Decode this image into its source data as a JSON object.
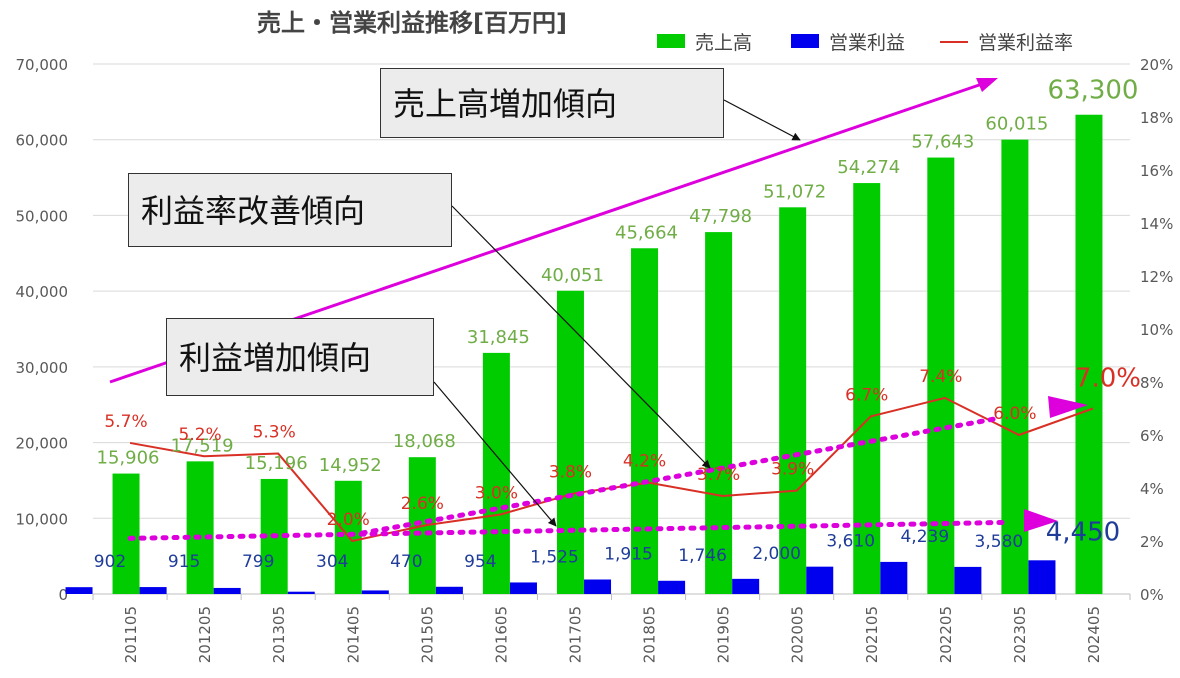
{
  "chart_data": {
    "type": "bar",
    "title": "売上・営業利益推移[百万円]",
    "categories": [
      "201105",
      "201205",
      "201305",
      "201405",
      "201505",
      "201605",
      "201705",
      "201805",
      "201905",
      "202005",
      "202105",
      "202205",
      "202305",
      "202405"
    ],
    "series": [
      {
        "name": "売上高",
        "axis": "left",
        "type": "bar",
        "color": "#00cc00",
        "values": [
          15906,
          17519,
          15196,
          14952,
          18068,
          31845,
          40051,
          45664,
          47798,
          51072,
          54274,
          57643,
          60015,
          63300
        ],
        "labels": [
          "15,906",
          "17,519",
          "15,196",
          "14,952",
          "18,068",
          "31,845",
          "40,051",
          "45,664",
          "47,798",
          "51,072",
          "54,274",
          "57,643",
          "60,015",
          "63,300"
        ]
      },
      {
        "name": "営業利益",
        "axis": "left",
        "type": "bar",
        "color": "#0000ee",
        "values": [
          902,
          915,
          799,
          304,
          470,
          954,
          1525,
          1915,
          1746,
          2000,
          3610,
          4239,
          3580,
          4450
        ],
        "labels": [
          "902",
          "915",
          "799",
          "304",
          "470",
          "954",
          "1,525",
          "1,915",
          "1,746",
          "2,000",
          "3,610",
          "4,239",
          "3,580",
          "4,450"
        ]
      },
      {
        "name": "営業利益率",
        "axis": "right",
        "type": "line",
        "color": "#d93025",
        "values": [
          5.7,
          5.2,
          5.3,
          2.0,
          2.6,
          3.0,
          3.8,
          4.2,
          3.7,
          3.9,
          6.7,
          7.4,
          6.0,
          7.0
        ],
        "labels": [
          "5.7%",
          "5.2%",
          "5.3%",
          "2.0%",
          "2.6%",
          "3.0%",
          "3.8%",
          "4.2%",
          "3.7%",
          "3.9%",
          "6.7%",
          "7.4%",
          "6.0%",
          "7.0%"
        ]
      }
    ],
    "yleft": {
      "range": [
        0,
        70000
      ],
      "ticks": [
        "0",
        "10,000",
        "20,000",
        "30,000",
        "40,000",
        "50,000",
        "60,000",
        "70,000"
      ]
    },
    "yright": {
      "range": [
        0,
        20
      ],
      "ticks": [
        "0%",
        "2%",
        "4%",
        "6%",
        "8%",
        "10%",
        "12%",
        "14%",
        "16%",
        "18%",
        "20%"
      ]
    },
    "grid": true,
    "legend_position": "top-right",
    "annotations": [
      "売上高増加傾向",
      "利益率改善傾向",
      "利益増加傾向"
    ]
  },
  "colors": {
    "sales": "#00cc00",
    "profit": "#0000ee",
    "rate": "#d93025",
    "trend": "#dd00dd",
    "sales_label": "#70ad47",
    "profit_label": "#1f3c99"
  }
}
